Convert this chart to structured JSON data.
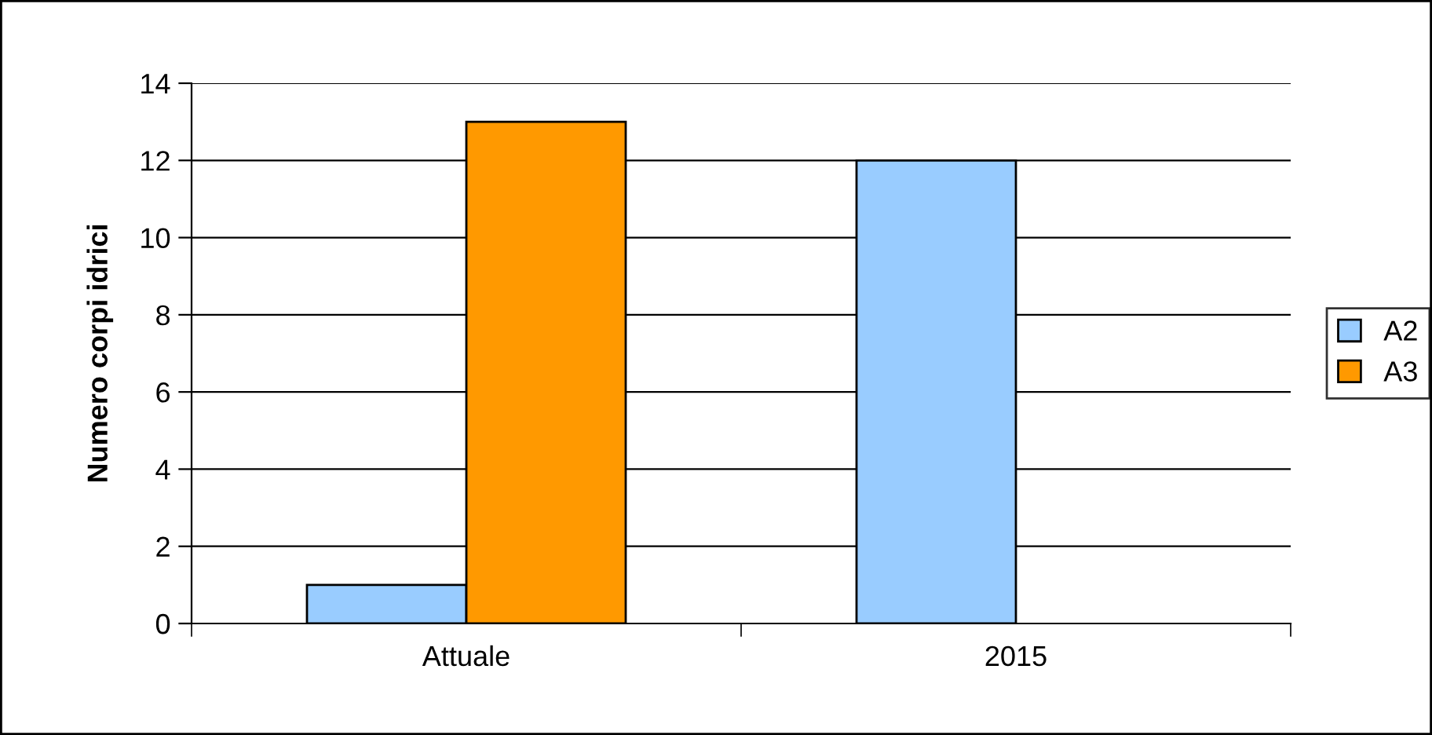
{
  "chart_data": {
    "type": "bar",
    "ylabel": "Numero corpi idrici",
    "categories": [
      "Attuale",
      "2015"
    ],
    "series": [
      {
        "name": "A2",
        "color": "#99ccff",
        "values": [
          1,
          12
        ]
      },
      {
        "name": "A3",
        "color": "#ff9900",
        "values": [
          13,
          null
        ]
      }
    ],
    "ylim": [
      0,
      14
    ],
    "yticks": [
      0,
      2,
      4,
      6,
      8,
      10,
      12,
      14
    ],
    "grid": "y",
    "legend": "right"
  }
}
